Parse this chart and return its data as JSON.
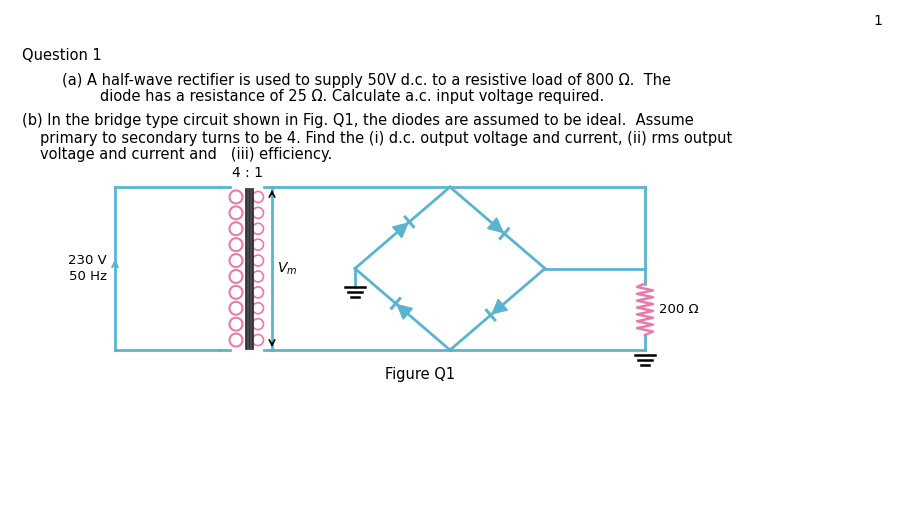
{
  "bg_color": "#ffffff",
  "text_color": "#000000",
  "circuit_color": "#5ab4d0",
  "transformer_primary_color": "#e87ab0",
  "resistor_color": "#e87ab0",
  "page_number": "1",
  "title": "Question 1",
  "figure_label": "Figure Q1",
  "turns_ratio": "4 : 1",
  "source_label_1": "230 V",
  "source_label_2": "50 Hz",
  "vm_label": "$V_m$",
  "resistor_label": "200 Ω",
  "line_a1": "(a) A half-wave rectifier is used to supply 50V d.c. to a resistive load of 800 Ω.  The",
  "line_a2": "diode has a resistance of 25 Ω. Calculate a.c. input voltage required.",
  "line_b1": "(b) In the bridge type circuit shown in Fig. Q1, the diodes are assumed to be ideal.  Assume",
  "line_b2": "primary to secondary turns to be 4. Find the (i) d.c. output voltage and current, (ii) rms output",
  "line_b3": "voltage and current and   (iii) efficiency."
}
